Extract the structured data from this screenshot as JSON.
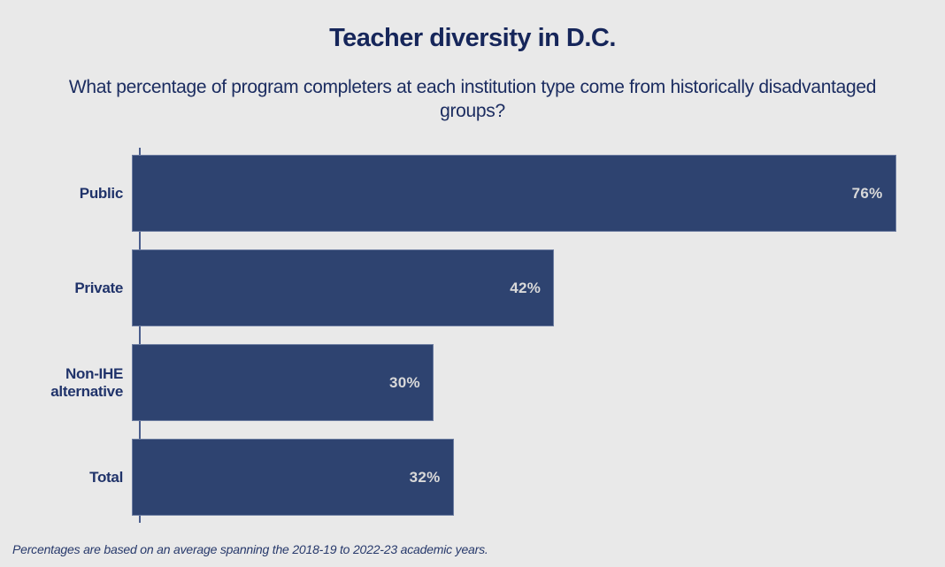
{
  "page": {
    "background_color": "#e9e9e9"
  },
  "chart_data": {
    "type": "bar",
    "orientation": "horizontal",
    "title": "Teacher diversity in D.C.",
    "subtitle": "What percentage of program completers at each institution type come from historically disadvantaged groups?",
    "categories": [
      "Public",
      "Private",
      "Non-IHE alternative",
      "Total"
    ],
    "values": [
      76,
      42,
      30,
      32
    ],
    "value_labels": [
      "76%",
      "42%",
      "30%",
      "32%"
    ],
    "xlabel": "",
    "ylabel": "",
    "xlim": [
      0,
      80
    ],
    "grid": false,
    "legend": false,
    "bar_color": "#2e4370",
    "value_label_color": "#d9d9d9",
    "text_color": "#1b2c60",
    "footnote": "Percentages are based on an average spanning the 2018-19 to 2022-23 academic years."
  }
}
